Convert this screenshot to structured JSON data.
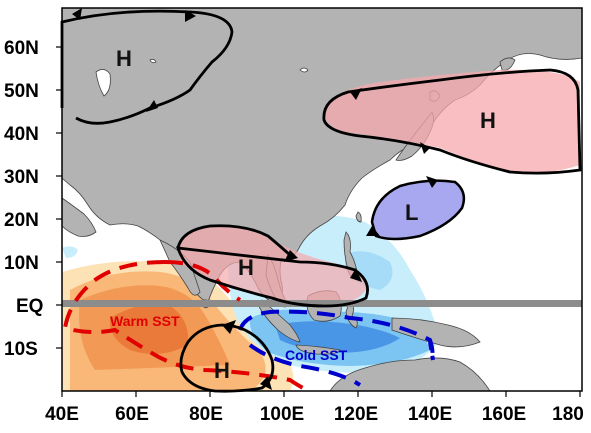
{
  "map": {
    "lat_labels": [
      "60N",
      "50N",
      "40N",
      "30N",
      "20N",
      "10N",
      "EQ",
      "10S"
    ],
    "lon_labels": [
      "40E",
      "60E",
      "80E",
      "100E",
      "120E",
      "140E",
      "160E",
      "180"
    ],
    "systems": {
      "high_north": "H",
      "high_pacific": "H",
      "low_pacific": "L",
      "high_southasia": "H",
      "high_indian": "H"
    },
    "sst_labels": {
      "warm": "Warm SST",
      "cold": "Cold SST"
    },
    "colors": {
      "land": "#b3b3b3",
      "warm_anomaly": "#ef8a4a",
      "cold_anomaly": "#4aa8f0",
      "warm_contour": "#e00000",
      "cold_contour": "#0000cc",
      "high_fill": "#f7a8ad",
      "low_fill": "#a8a8f0",
      "equator_line": "#8c8c8c"
    }
  }
}
